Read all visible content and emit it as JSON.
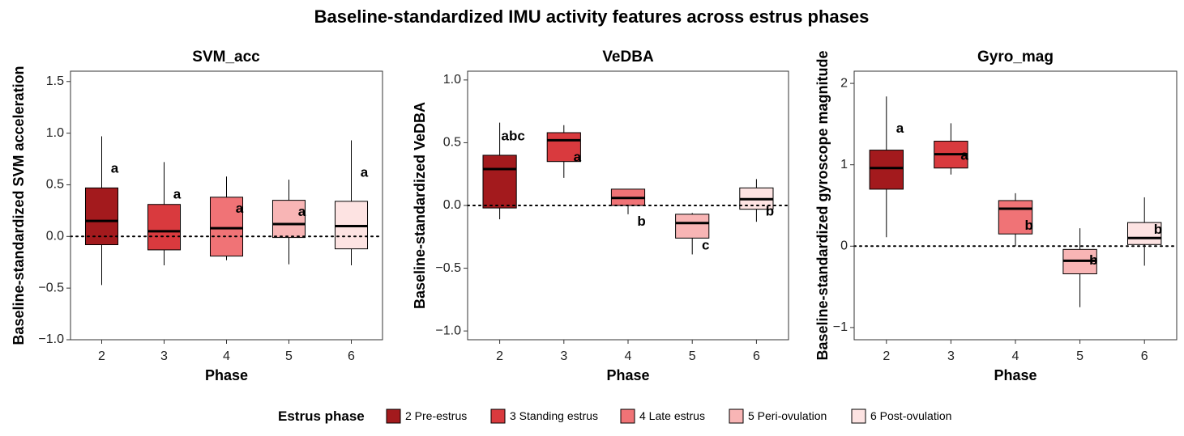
{
  "title": "Baseline-standardized IMU activity features across estrus phases",
  "legend": {
    "title": "Estrus phase",
    "position": "bottom",
    "entries": [
      {
        "label": "2 Pre-estrus",
        "color": "#a31a1d"
      },
      {
        "label": "3 Standing estrus",
        "color": "#d93a3e"
      },
      {
        "label": "4 Late estrus",
        "color": "#f07376"
      },
      {
        "label": "5 Peri-ovulation",
        "color": "#f8b5b5"
      },
      {
        "label": "6 Post-ovulation",
        "color": "#fde3e2"
      }
    ]
  },
  "chart_data": [
    {
      "type": "box",
      "title": "SVM_acc",
      "xlabel": "Phase",
      "ylabel": "Baseline-standardized SVM acceleration",
      "categories": [
        "2",
        "3",
        "4",
        "5",
        "6"
      ],
      "ylim": [
        -1.0,
        1.6
      ],
      "yticks": [
        -1.0,
        -0.5,
        0.0,
        0.5,
        1.0,
        1.5
      ],
      "ytick_labels": [
        "−1.0",
        "−0.5",
        "0.0",
        "0.5",
        "1.0",
        "1.5"
      ],
      "reference_line": 0,
      "boxes": [
        {
          "whisker_low": -0.47,
          "q1": -0.08,
          "median": 0.15,
          "q3": 0.47,
          "whisker_high": 0.97,
          "letter": "a"
        },
        {
          "whisker_low": -0.28,
          "q1": -0.13,
          "median": 0.05,
          "q3": 0.31,
          "whisker_high": 0.72,
          "letter": "a"
        },
        {
          "whisker_low": -0.23,
          "q1": -0.19,
          "median": 0.08,
          "q3": 0.38,
          "whisker_high": 0.58,
          "letter": "a"
        },
        {
          "whisker_low": -0.27,
          "q1": -0.01,
          "median": 0.12,
          "q3": 0.35,
          "whisker_high": 0.55,
          "letter": "a"
        },
        {
          "whisker_low": -0.28,
          "q1": -0.12,
          "median": 0.1,
          "q3": 0.34,
          "whisker_high": 0.93,
          "letter": "a"
        }
      ]
    },
    {
      "type": "box",
      "title": "VeDBA",
      "xlabel": "Phase",
      "ylabel": "Baseline-standardized VeDBA",
      "categories": [
        "2",
        "3",
        "4",
        "5",
        "6"
      ],
      "ylim": [
        -1.07,
        1.07
      ],
      "yticks": [
        -1.0,
        -0.5,
        0.0,
        0.5,
        1.0
      ],
      "ytick_labels": [
        "−1.0",
        "−0.5",
        "0.0",
        "0.5",
        "1.0"
      ],
      "reference_line": 0,
      "boxes": [
        {
          "whisker_low": -0.11,
          "q1": -0.02,
          "median": 0.29,
          "q3": 0.4,
          "whisker_high": 0.66,
          "letter": "abc"
        },
        {
          "whisker_low": 0.22,
          "q1": 0.35,
          "median": 0.52,
          "q3": 0.58,
          "whisker_high": 0.64,
          "letter": "a"
        },
        {
          "whisker_low": -0.07,
          "q1": 0.0,
          "median": 0.06,
          "q3": 0.13,
          "whisker_high": 0.13,
          "letter": "b"
        },
        {
          "whisker_low": -0.39,
          "q1": -0.26,
          "median": -0.14,
          "q3": -0.07,
          "whisker_high": -0.06,
          "letter": "c"
        },
        {
          "whisker_low": -0.13,
          "q1": -0.03,
          "median": 0.05,
          "q3": 0.14,
          "whisker_high": 0.21,
          "letter": "b"
        }
      ]
    },
    {
      "type": "box",
      "title": "Gyro_mag",
      "xlabel": "Phase",
      "ylabel": "Baseline-standardized gyroscope magnitude",
      "categories": [
        "2",
        "3",
        "4",
        "5",
        "6"
      ],
      "ylim": [
        -1.15,
        2.15
      ],
      "yticks": [
        -1,
        0,
        1,
        2
      ],
      "ytick_labels": [
        "−1",
        "0",
        "1",
        "2"
      ],
      "reference_line": 0,
      "boxes": [
        {
          "whisker_low": 0.11,
          "q1": 0.7,
          "median": 0.96,
          "q3": 1.18,
          "whisker_high": 1.84,
          "letter": "a"
        },
        {
          "whisker_low": 0.88,
          "q1": 0.96,
          "median": 1.13,
          "q3": 1.29,
          "whisker_high": 1.51,
          "letter": "a"
        },
        {
          "whisker_low": 0.0,
          "q1": 0.15,
          "median": 0.46,
          "q3": 0.56,
          "whisker_high": 0.65,
          "letter": "b"
        },
        {
          "whisker_low": -0.75,
          "q1": -0.34,
          "median": -0.18,
          "q3": -0.04,
          "whisker_high": 0.22,
          "letter": "b"
        },
        {
          "whisker_low": -0.24,
          "q1": 0.02,
          "median": 0.1,
          "q3": 0.29,
          "whisker_high": 0.6,
          "letter": "b"
        }
      ]
    }
  ]
}
